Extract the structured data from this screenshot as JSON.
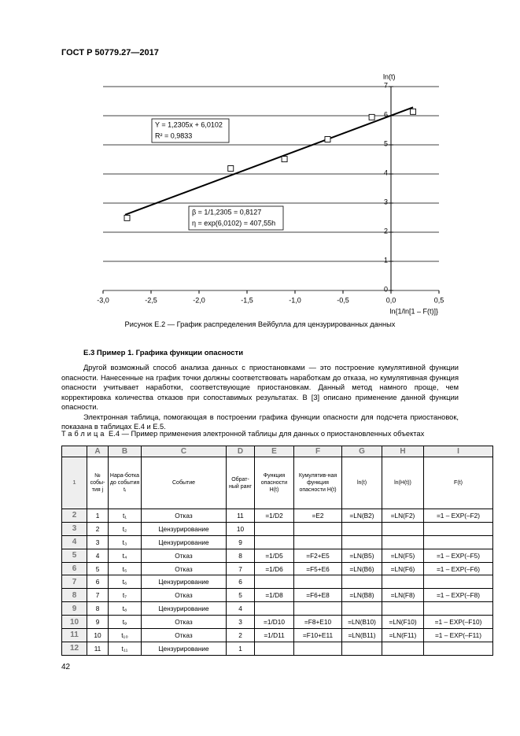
{
  "header": {
    "title": "ГОСТ Р 50779.27—2017"
  },
  "chart_data": {
    "type": "scatter",
    "x_label": "ln{1/ln[1 – F(t)]}",
    "y_label": "ln(t)",
    "xlim": [
      -3,
      0.5
    ],
    "ylim": [
      0,
      7
    ],
    "xticks": [
      {
        "value": -3,
        "label": "-3,0"
      },
      {
        "value": -2.5,
        "label": "-2,5"
      },
      {
        "value": -2,
        "label": "-2,0"
      },
      {
        "value": -1.5,
        "label": "-1,5"
      },
      {
        "value": -1,
        "label": "-1,0"
      },
      {
        "value": -0.5,
        "label": "-0,5"
      },
      {
        "value": 0,
        "label": "0,0"
      },
      {
        "value": 0.5,
        "label": "0,5"
      }
    ],
    "yticks": [
      0,
      1,
      2,
      3,
      4,
      5,
      6,
      7
    ],
    "grid": true,
    "series": [
      {
        "style": "markers",
        "color": "#000000",
        "x": [
          -2.75,
          -1.67,
          -1.11,
          -0.66,
          -0.2,
          0.23
        ],
        "values": [
          2.49,
          4.19,
          4.51,
          5.19,
          5.95,
          6.14
        ]
      },
      {
        "style": "line",
        "color": "#000000",
        "x": [
          -2.77,
          0.23
        ],
        "values": [
          2.6,
          6.29
        ]
      }
    ],
    "annotations": [
      {
        "lines": [
          "Y = 1,2305x + 6,0102",
          "R² = 0,9833"
        ]
      },
      {
        "lines": [
          "β = 1/1,2305 = 0,8127",
          "η = exp(6,0102) = 407,55h"
        ]
      }
    ]
  },
  "figure_caption": "Рисунок Е.2 — График распределения Вейбулла для цензурированных данных",
  "section": {
    "heading": "Е.3 Пример 1. Графика функции опасности",
    "paragraphs": [
      "Другой возможный способ анализа данных с приостановками — это построение кумулятивной функции опасности. Нанесенные на график точки должны соответствовать наработкам до отказа, но кумулятивная функция опасности учитывает наработки, соответствующие приостановкам. Данный метод намного проще, чем корректировка количества отказов при сопоставимых результатах. В [3] описано применение данной функции опасности.",
      "Электронная таблица, помогающая в построении графика функции опасности для подсчета приостановок, показана в таблицах Е.4 и Е.5."
    ]
  },
  "table": {
    "caption_label": "Таблица",
    "caption": "Е.4 — Пример применения электронной таблицы для данных о приостановленных объектах",
    "columns": [
      "A",
      "B",
      "C",
      "D",
      "E",
      "F",
      "G",
      "H",
      "I"
    ],
    "row_numbers": [
      1,
      2,
      3,
      4,
      5,
      6,
      7,
      8,
      9,
      10,
      11,
      12
    ],
    "header": [
      "№ собы-тия j",
      "Нара-ботка до события tᵢ",
      "Событие",
      "Обрат-ный ранг",
      "Функция опасности H(t)",
      "Кумулятив-ная функция опасности H(t)",
      "ln(t)",
      "ln(H(t))",
      "F(t)"
    ],
    "rows": [
      [
        1,
        "t₁",
        "Отказ",
        11,
        "=1/D2",
        "=E2",
        "=LN(B2)",
        "=LN(F2)",
        "=1 – EXP(–F2)"
      ],
      [
        2,
        "t₂",
        "Цензурирование",
        10,
        null,
        null,
        null,
        null,
        null
      ],
      [
        3,
        "t₃",
        "Цензурирование",
        9,
        null,
        null,
        null,
        null,
        null
      ],
      [
        4,
        "t₄",
        "Отказ",
        8,
        "=1/D5",
        "=F2+E5",
        "=LN(B5)",
        "=LN(F5)",
        "=1 – EXP(–F5)"
      ],
      [
        5,
        "t₅",
        "Отказ",
        7,
        "=1/D6",
        "=F5+E6",
        "=LN(B6)",
        "=LN(F6)",
        "=1 – EXP(–F6)"
      ],
      [
        6,
        "t₆",
        "Цензурирование",
        6,
        null,
        null,
        null,
        null,
        null
      ],
      [
        7,
        "t₇",
        "Отказ",
        5,
        "=1/D8",
        "=F6+E8",
        "=LN(B8)",
        "=LN(F8)",
        "=1 – EXP(–F8)"
      ],
      [
        8,
        "t₈",
        "Цензурирование",
        4,
        null,
        null,
        null,
        null,
        null
      ],
      [
        9,
        "t₉",
        "Отказ",
        3,
        "=1/D10",
        "=F8+E10",
        "=LN(B10)",
        "=LN(F10)",
        "=1 – EXP(–F10)"
      ],
      [
        10,
        "t₁₀",
        "Отказ",
        2,
        "=1/D11",
        "=F10+E11",
        "=LN(B11)",
        "=LN(F11)",
        "=1 – EXP(–F11)"
      ],
      [
        11,
        "t₁₁",
        "Цензурирование",
        1,
        null,
        null,
        null,
        null,
        null
      ]
    ]
  },
  "page_number": "42"
}
